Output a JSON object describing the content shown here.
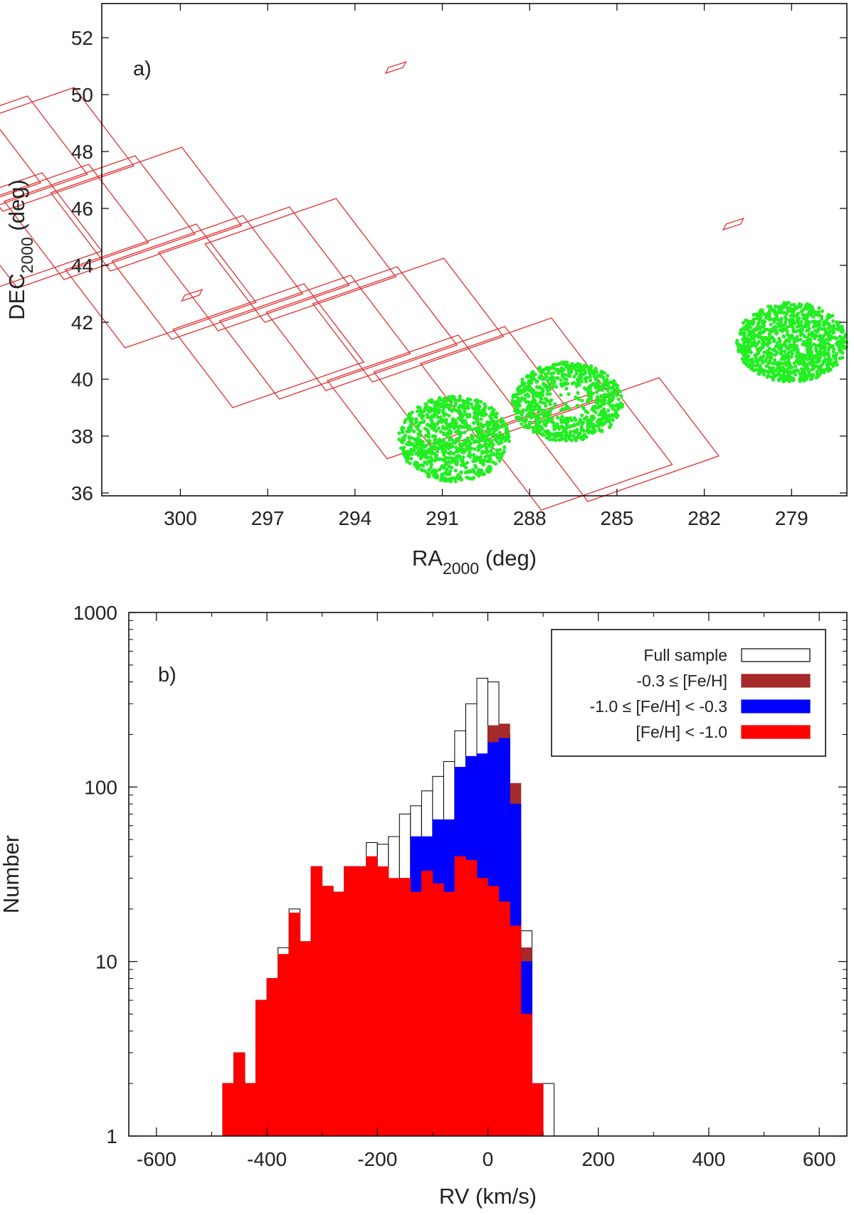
{
  "chart_data": [
    {
      "type": "scatter",
      "panel_label": "a)",
      "xlabel": "RA",
      "xlabel_sub": "2000",
      "xlabel_unit": " (deg)",
      "ylabel": "DEC",
      "ylabel_sub": "2000",
      "ylabel_unit": " (deg)",
      "xlim": [
        302.7,
        277.1
      ],
      "ylim": [
        35.9,
        53.2
      ],
      "xticks": [
        300,
        297,
        294,
        291,
        288,
        285,
        282,
        279
      ],
      "yticks": [
        36,
        38,
        40,
        42,
        44,
        46,
        48,
        50,
        52
      ],
      "colors": {
        "fields": "#e03030",
        "points": "#22ee22"
      },
      "footprint_grid": {
        "origin": [
          300.8,
          44.1
        ],
        "row_step": [
          -5.3,
          1.8
        ],
        "col_step": [
          3.7,
          -2.1
        ],
        "cell_width": [
          4.5,
          1.6
        ],
        "cell_height": [
          -2.05,
          2.75
        ],
        "rows": [
          {
            "row": 0,
            "cols": [
              1,
              2,
              3,
              4
            ]
          },
          {
            "row": 1,
            "cols": [
              0,
              1,
              2,
              3,
              4,
              5
            ]
          },
          {
            "row": 2,
            "cols": [
              0,
              1,
              2,
              3,
              4,
              5
            ]
          },
          {
            "row": 3,
            "cols": [
              0,
              1,
              2,
              3,
              4,
              5
            ]
          },
          {
            "row": 4,
            "cols": [
              1,
              2,
              3,
              4
            ]
          }
        ]
      },
      "small_fields": [
        {
          "ra": 292.6,
          "dec": 50.9
        },
        {
          "ra": 281.0,
          "dec": 45.4
        },
        {
          "ra": 299.6,
          "dec": 42.9
        }
      ],
      "clusters": [
        {
          "name": "",
          "ra_center": 290.6,
          "dec_center": 37.9,
          "ra_halfwidth": 1.9,
          "dec_halfwidth": 1.5,
          "n_points": 900
        },
        {
          "name": "",
          "ra_center": 286.7,
          "dec_center": 39.2,
          "ra_halfwidth": 1.9,
          "dec_halfwidth": 1.4,
          "n_points": 900
        },
        {
          "name": "",
          "ra_center": 279.0,
          "dec_center": 41.3,
          "ra_halfwidth": 1.9,
          "dec_halfwidth": 1.4,
          "n_points": 1000
        }
      ]
    },
    {
      "type": "bar",
      "panel_label": "b)",
      "xlabel": "RV (km/s)",
      "ylabel": "Number",
      "xlim": [
        -650,
        650
      ],
      "ylim": [
        1,
        1000
      ],
      "yscale": "log",
      "xticks": [
        -600,
        -400,
        -200,
        0,
        200,
        400,
        600
      ],
      "yticks": [
        1,
        10,
        100,
        1000
      ],
      "ytick_labels": [
        "1",
        "10",
        "100",
        "1000"
      ],
      "bin_width": 20,
      "legend_position": "top-right",
      "legend": [
        {
          "label": "Full sample",
          "color": "#ffffff"
        },
        {
          "label": "-0.3 ≤ [Fe/H]",
          "color": "#a52a2a"
        },
        {
          "label": "-1.0 ≤ [Fe/H] < -0.3",
          "color": "#0000ff"
        },
        {
          "label": "[Fe/H] < -1.0",
          "color": "#ff0000"
        }
      ],
      "series": [
        {
          "name": "Full sample",
          "bins": [
            [
              -470,
              2
            ],
            [
              -450,
              3
            ],
            [
              -430,
              2
            ],
            [
              -410,
              6
            ],
            [
              -390,
              8
            ],
            [
              -370,
              12
            ],
            [
              -350,
              20
            ],
            [
              -330,
              13
            ],
            [
              -310,
              35
            ],
            [
              -290,
              27
            ],
            [
              -270,
              25
            ],
            [
              -250,
              35
            ],
            [
              -230,
              35
            ],
            [
              -210,
              48
            ],
            [
              -190,
              47
            ],
            [
              -170,
              52
            ],
            [
              -150,
              70
            ],
            [
              -130,
              78
            ],
            [
              -110,
              95
            ],
            [
              -90,
              115
            ],
            [
              -70,
              140
            ],
            [
              -50,
              210
            ],
            [
              -30,
              300
            ],
            [
              -10,
              420
            ],
            [
              10,
              400
            ],
            [
              30,
              200
            ],
            [
              50,
              50
            ],
            [
              70,
              15
            ],
            [
              110,
              2
            ]
          ]
        },
        {
          "name": "-0.3 ≤ [Fe/H]",
          "bins": [
            [
              -70,
              2
            ],
            [
              -50,
              7
            ],
            [
              -30,
              45
            ],
            [
              -10,
              155
            ],
            [
              10,
              225
            ],
            [
              30,
              230
            ],
            [
              50,
              105
            ],
            [
              70,
              12
            ]
          ]
        },
        {
          "name": "-1.0 ≤ [Fe/H] < -0.3",
          "bins": [
            [
              -390,
              2
            ],
            [
              -350,
              3
            ],
            [
              -330,
              2
            ],
            [
              -230,
              2
            ],
            [
              -210,
              10
            ],
            [
              -190,
              15
            ],
            [
              -170,
              18
            ],
            [
              -150,
              30
            ],
            [
              -130,
              52
            ],
            [
              -110,
              52
            ],
            [
              -90,
              65
            ],
            [
              -70,
              65
            ],
            [
              -50,
              130
            ],
            [
              -30,
              150
            ],
            [
              -10,
              155
            ],
            [
              10,
              180
            ],
            [
              30,
              190
            ],
            [
              50,
              80
            ],
            [
              70,
              10
            ],
            [
              90,
              2
            ]
          ]
        },
        {
          "name": "[Fe/H] < -1.0",
          "bins": [
            [
              -470,
              2
            ],
            [
              -450,
              3
            ],
            [
              -430,
              2
            ],
            [
              -410,
              6
            ],
            [
              -390,
              8
            ],
            [
              -370,
              11
            ],
            [
              -350,
              19
            ],
            [
              -330,
              13
            ],
            [
              -310,
              35
            ],
            [
              -290,
              27
            ],
            [
              -270,
              25
            ],
            [
              -250,
              35
            ],
            [
              -230,
              35
            ],
            [
              -210,
              40
            ],
            [
              -190,
              35
            ],
            [
              -170,
              30
            ],
            [
              -150,
              30
            ],
            [
              -130,
              25
            ],
            [
              -110,
              33
            ],
            [
              -90,
              28
            ],
            [
              -70,
              25
            ],
            [
              -50,
              40
            ],
            [
              -30,
              38
            ],
            [
              -10,
              30
            ],
            [
              10,
              27
            ],
            [
              30,
              22
            ],
            [
              50,
              16
            ],
            [
              70,
              5
            ],
            [
              90,
              2
            ]
          ]
        }
      ]
    }
  ]
}
